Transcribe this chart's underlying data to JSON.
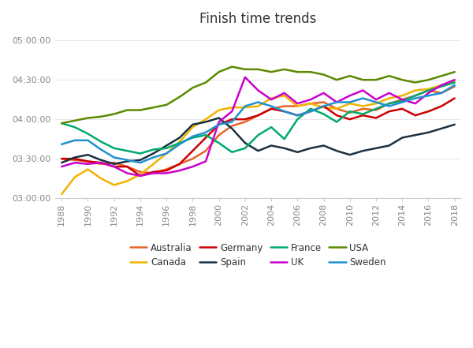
{
  "title": "Finish time trends",
  "years": [
    1988,
    1989,
    1990,
    1991,
    1992,
    1993,
    1994,
    1995,
    1996,
    1997,
    1998,
    1999,
    2000,
    2001,
    2002,
    2003,
    2004,
    2005,
    2006,
    2007,
    2008,
    2009,
    2010,
    2011,
    2012,
    2013,
    2014,
    2015,
    2016,
    2017,
    2018
  ],
  "series": {
    "Australia": {
      "color": "#E8622A",
      "values": [
        210,
        209,
        208,
        206,
        207,
        204,
        200,
        199,
        202,
        206,
        210,
        216,
        228,
        235,
        238,
        243,
        248,
        250,
        250,
        252,
        253,
        248,
        245,
        248,
        247,
        252,
        255,
        258,
        262,
        260,
        265
      ]
    },
    "Canada": {
      "color": "#F0B400",
      "values": [
        183,
        196,
        202,
        195,
        190,
        193,
        198,
        206,
        214,
        223,
        234,
        240,
        247,
        249,
        249,
        250,
        256,
        258,
        250,
        252,
        249,
        248,
        252,
        250,
        252,
        256,
        258,
        262,
        263,
        266,
        269
      ]
    },
    "Germany": {
      "color": "#CC0000",
      "values": [
        210,
        210,
        208,
        207,
        204,
        204,
        197,
        200,
        201,
        206,
        216,
        226,
        236,
        240,
        240,
        243,
        248,
        246,
        243,
        246,
        250,
        243,
        240,
        243,
        241,
        246,
        248,
        243,
        246,
        250,
        256
      ]
    },
    "Spain": {
      "color": "#1C3040",
      "values": [
        207,
        211,
        213,
        209,
        206,
        208,
        209,
        214,
        220,
        226,
        236,
        238,
        241,
        233,
        222,
        216,
        220,
        218,
        215,
        218,
        220,
        216,
        213,
        216,
        218,
        220,
        226,
        228,
        230,
        233,
        236
      ]
    },
    "France": {
      "color": "#00AA6C",
      "values": [
        237,
        234,
        229,
        223,
        218,
        216,
        214,
        217,
        218,
        222,
        226,
        228,
        222,
        215,
        218,
        228,
        234,
        225,
        240,
        248,
        244,
        238,
        246,
        244,
        248,
        252,
        254,
        258,
        262,
        265,
        268
      ]
    },
    "UK": {
      "color": "#CC00CC",
      "values": [
        204,
        207,
        206,
        207,
        204,
        199,
        197,
        199,
        199,
        201,
        204,
        208,
        238,
        246,
        272,
        262,
        255,
        260,
        252,
        255,
        260,
        253,
        258,
        262,
        255,
        260,
        255,
        252,
        260,
        266,
        270
      ]
    },
    "USA": {
      "color": "#5B8A00",
      "values": [
        237,
        239,
        241,
        242,
        244,
        247,
        247,
        249,
        251,
        257,
        264,
        268,
        276,
        280,
        278,
        278,
        276,
        278,
        276,
        276,
        274,
        270,
        273,
        270,
        270,
        273,
        270,
        268,
        270,
        273,
        276
      ]
    },
    "Sweden": {
      "color": "#2090D0",
      "values": [
        221,
        224,
        224,
        217,
        211,
        209,
        207,
        211,
        214,
        221,
        227,
        230,
        236,
        238,
        250,
        253,
        250,
        246,
        243,
        246,
        250,
        253,
        253,
        256,
        253,
        250,
        253,
        256,
        258,
        260,
        266
      ]
    }
  },
  "ylim_minutes": [
    180,
    305
  ],
  "yticks_minutes": [
    180,
    210,
    240,
    270,
    300
  ],
  "ytick_labels": [
    "03:00:00",
    "03:30:00",
    "04:00:00",
    "04:30:00",
    "05:00:00"
  ],
  "background_color": "#ffffff",
  "legend_row1": [
    "Australia",
    "Canada",
    "Germany",
    "Spain"
  ],
  "legend_row2": [
    "France",
    "UK",
    "USA",
    "Sweden"
  ]
}
